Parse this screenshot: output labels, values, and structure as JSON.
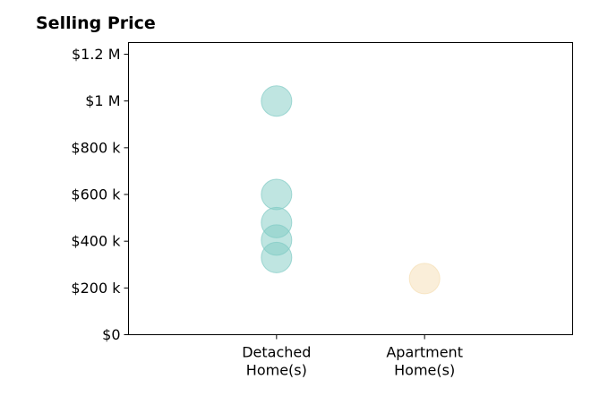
{
  "chart_data": {
    "type": "scatter",
    "title": "Selling Price",
    "xlabel": "",
    "ylabel": "",
    "categories": [
      "Detached\nHome(s)",
      "Apartment\nHome(s)"
    ],
    "xlim": [
      0,
      3
    ],
    "ylim": [
      0,
      1250000
    ],
    "y_ticks": [
      0,
      200000,
      400000,
      600000,
      800000,
      1000000,
      1200000
    ],
    "y_tick_labels": [
      "$0",
      "$200 k",
      "$400 k",
      "$600 k",
      "$800 k",
      "$1 M",
      "$1.2 M"
    ],
    "grid": false,
    "series": [
      {
        "category": "Detached\nHome(s)",
        "color": "#80cbc4",
        "values": [
          1000000,
          600000,
          480000,
          405000,
          330000
        ]
      },
      {
        "category": "Apartment\nHome(s)",
        "color": "#f5deb3",
        "values": [
          240000
        ]
      }
    ]
  }
}
